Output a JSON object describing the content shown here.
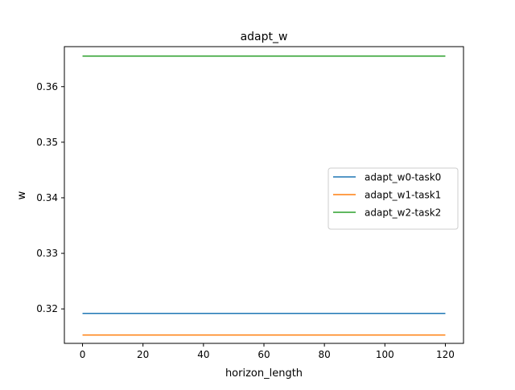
{
  "chart_data": {
    "type": "line",
    "title": "adapt_w",
    "xlabel": "horizon_length",
    "ylabel": "w",
    "xlim": [
      -6,
      126
    ],
    "ylim": [
      0.3138,
      0.3672
    ],
    "xticks": [
      0,
      20,
      40,
      60,
      80,
      100,
      120
    ],
    "xtick_labels": [
      "0",
      "20",
      "40",
      "60",
      "80",
      "100",
      "120"
    ],
    "yticks": [
      0.32,
      0.33,
      0.34,
      0.35,
      0.36
    ],
    "ytick_labels": [
      "0.32",
      "0.33",
      "0.34",
      "0.35",
      "0.36"
    ],
    "grid": false,
    "legend_position": "center-right",
    "x": [
      0,
      120
    ],
    "series": [
      {
        "name": "adapt_w0-task0",
        "color": "#1f77b4",
        "values": [
          0.3192,
          0.3192
        ]
      },
      {
        "name": "adapt_w1-task1",
        "color": "#ff7f0e",
        "values": [
          0.3153,
          0.3153
        ]
      },
      {
        "name": "adapt_w2-task2",
        "color": "#2ca02c",
        "values": [
          0.3655,
          0.3655
        ]
      }
    ]
  }
}
